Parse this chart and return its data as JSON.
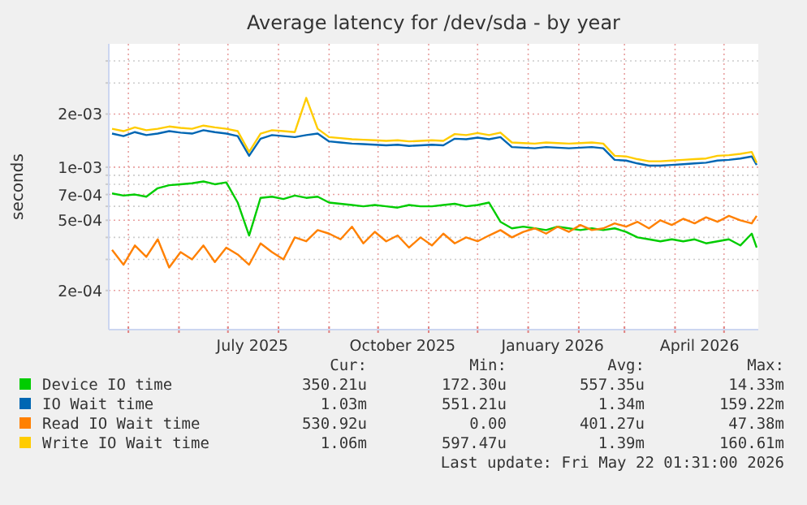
{
  "chart_data": {
    "type": "line",
    "title": "Average latency for /dev/sda - by year",
    "ylabel": "seconds",
    "log": "y",
    "grid": true,
    "legend": "bottom",
    "marker": "none",
    "line_style": "solid",
    "xlim": [
      "2025-04-19",
      "2026-05-22"
    ],
    "xticks": [
      {
        "value": "2025-05-01",
        "label": null
      },
      {
        "value": "2025-06-01",
        "label": null
      },
      {
        "value": "2025-07-01",
        "label": null
      },
      {
        "value": "2025-07-16",
        "label": "July 2025"
      },
      {
        "value": "2025-08-01",
        "label": null
      },
      {
        "value": "2025-09-01",
        "label": null
      },
      {
        "value": "2025-10-01",
        "label": null
      },
      {
        "value": "2025-10-16",
        "label": "October 2025"
      },
      {
        "value": "2025-11-01",
        "label": null
      },
      {
        "value": "2025-12-01",
        "label": null
      },
      {
        "value": "2026-01-01",
        "label": null
      },
      {
        "value": "2026-01-16",
        "label": "January 2026"
      },
      {
        "value": "2026-02-01",
        "label": null
      },
      {
        "value": "2026-03-01",
        "label": null
      },
      {
        "value": "2026-04-01",
        "label": null
      },
      {
        "value": "2026-04-16",
        "label": "April 2026"
      },
      {
        "value": "2026-05-01",
        "label": null
      }
    ],
    "ylim": [
      0.00012,
      0.005
    ],
    "yticks": [
      {
        "value": 0.0002,
        "label": "2e-04"
      },
      {
        "value": 0.0003,
        "label": null
      },
      {
        "value": 0.0004,
        "label": null
      },
      {
        "value": 0.0005,
        "label": "5e-04"
      },
      {
        "value": 0.0006,
        "label": null
      },
      {
        "value": 0.0007,
        "label": "7e-04"
      },
      {
        "value": 0.0008,
        "label": null
      },
      {
        "value": 0.0009,
        "label": null
      },
      {
        "value": 0.001,
        "label": "1e-03"
      },
      {
        "value": 0.002,
        "label": "2e-03"
      },
      {
        "value": 0.003,
        "label": null
      },
      {
        "value": 0.004,
        "label": null
      }
    ],
    "x": [
      "2025-04-21",
      "2025-04-28",
      "2025-05-05",
      "2025-05-12",
      "2025-05-19",
      "2025-05-26",
      "2025-06-02",
      "2025-06-09",
      "2025-06-16",
      "2025-06-23",
      "2025-06-30",
      "2025-07-07",
      "2025-07-14",
      "2025-07-21",
      "2025-07-28",
      "2025-08-04",
      "2025-08-11",
      "2025-08-18",
      "2025-08-25",
      "2025-09-01",
      "2025-09-08",
      "2025-09-15",
      "2025-09-22",
      "2025-09-29",
      "2025-10-06",
      "2025-10-13",
      "2025-10-20",
      "2025-10-27",
      "2025-11-03",
      "2025-11-10",
      "2025-11-17",
      "2025-11-24",
      "2025-12-01",
      "2025-12-08",
      "2025-12-15",
      "2025-12-22",
      "2025-12-29",
      "2026-01-05",
      "2026-01-12",
      "2026-01-19",
      "2026-01-26",
      "2026-02-02",
      "2026-02-09",
      "2026-02-16",
      "2026-02-23",
      "2026-03-02",
      "2026-03-09",
      "2026-03-16",
      "2026-03-23",
      "2026-03-30",
      "2026-04-06",
      "2026-04-13",
      "2026-04-20",
      "2026-04-27",
      "2026-05-04",
      "2026-05-11",
      "2026-05-18",
      "2026-05-21"
    ],
    "series": [
      {
        "name": "Device IO time",
        "color": "#00cc00",
        "values": [
          0.00071,
          0.00069,
          0.0007,
          0.00068,
          0.00076,
          0.00079,
          0.0008,
          0.00081,
          0.00083,
          0.0008,
          0.00082,
          0.00063,
          0.00041,
          0.00067,
          0.00068,
          0.00066,
          0.00069,
          0.00067,
          0.00068,
          0.00063,
          0.00062,
          0.00061,
          0.0006,
          0.00061,
          0.0006,
          0.00059,
          0.00061,
          0.0006,
          0.0006,
          0.00061,
          0.00062,
          0.0006,
          0.00061,
          0.00063,
          0.00049,
          0.00045,
          0.00046,
          0.00045,
          0.00044,
          0.00046,
          0.00045,
          0.00044,
          0.00045,
          0.00044,
          0.00045,
          0.00043,
          0.0004,
          0.00039,
          0.00038,
          0.00039,
          0.00038,
          0.00039,
          0.00037,
          0.00038,
          0.00039,
          0.00036,
          0.00042,
          0.00035
        ]
      },
      {
        "name": "IO Wait time",
        "color": "#0066b3",
        "values": [
          0.00155,
          0.0015,
          0.00158,
          0.00152,
          0.00155,
          0.0016,
          0.00157,
          0.00155,
          0.00162,
          0.00158,
          0.00155,
          0.0015,
          0.00116,
          0.00145,
          0.00152,
          0.0015,
          0.00148,
          0.00152,
          0.00155,
          0.0014,
          0.00138,
          0.00136,
          0.00135,
          0.00134,
          0.00133,
          0.00134,
          0.00132,
          0.00133,
          0.00134,
          0.00133,
          0.00145,
          0.00144,
          0.00147,
          0.00144,
          0.00148,
          0.0013,
          0.00129,
          0.00128,
          0.0013,
          0.00129,
          0.00128,
          0.00129,
          0.0013,
          0.00128,
          0.0011,
          0.00109,
          0.00105,
          0.00102,
          0.00102,
          0.00103,
          0.00104,
          0.00105,
          0.00106,
          0.00109,
          0.0011,
          0.00112,
          0.00115,
          0.00103
        ]
      },
      {
        "name": "Read IO Wait time",
        "color": "#ff8000",
        "values": [
          0.00034,
          0.00028,
          0.00036,
          0.00031,
          0.00039,
          0.00027,
          0.00033,
          0.0003,
          0.00036,
          0.00029,
          0.00035,
          0.00032,
          0.00028,
          0.00037,
          0.00033,
          0.0003,
          0.0004,
          0.00038,
          0.00044,
          0.00042,
          0.00039,
          0.00046,
          0.00037,
          0.00043,
          0.00038,
          0.00041,
          0.00035,
          0.0004,
          0.00036,
          0.00042,
          0.00037,
          0.0004,
          0.00038,
          0.00041,
          0.00044,
          0.0004,
          0.00043,
          0.00045,
          0.00042,
          0.00046,
          0.00043,
          0.00047,
          0.00044,
          0.00045,
          0.00048,
          0.00046,
          0.00049,
          0.00045,
          0.0005,
          0.00047,
          0.00051,
          0.00048,
          0.00052,
          0.00049,
          0.00053,
          0.0005,
          0.00048,
          0.00053
        ]
      },
      {
        "name": "Write IO Wait time",
        "color": "#ffcc00",
        "values": [
          0.00165,
          0.0016,
          0.00168,
          0.00162,
          0.00165,
          0.0017,
          0.00167,
          0.00165,
          0.00172,
          0.00168,
          0.00165,
          0.0016,
          0.00122,
          0.00155,
          0.00162,
          0.0016,
          0.00158,
          0.00247,
          0.00165,
          0.00148,
          0.00146,
          0.00144,
          0.00143,
          0.00142,
          0.00141,
          0.00142,
          0.0014,
          0.00141,
          0.00142,
          0.00141,
          0.00154,
          0.00152,
          0.00156,
          0.00152,
          0.00157,
          0.00138,
          0.00137,
          0.00136,
          0.00138,
          0.00137,
          0.00136,
          0.00137,
          0.00138,
          0.00136,
          0.00116,
          0.00115,
          0.00111,
          0.00108,
          0.00108,
          0.00109,
          0.0011,
          0.00111,
          0.00112,
          0.00116,
          0.00117,
          0.00119,
          0.00122,
          0.00106
        ]
      }
    ],
    "annotations": [
      "Cur:",
      "Min:",
      "Avg:",
      "Max:",
      "350.21u",
      "172.30u",
      "557.35u",
      "14.33m",
      "1.03m",
      "551.21u",
      "1.34m",
      "159.22m",
      "530.92u",
      "0.00",
      "401.27u",
      "47.38m",
      "1.06m",
      "597.47u",
      "1.39m",
      "160.61m",
      "Last update: Fri May 22 01:31:00 2026"
    ]
  }
}
